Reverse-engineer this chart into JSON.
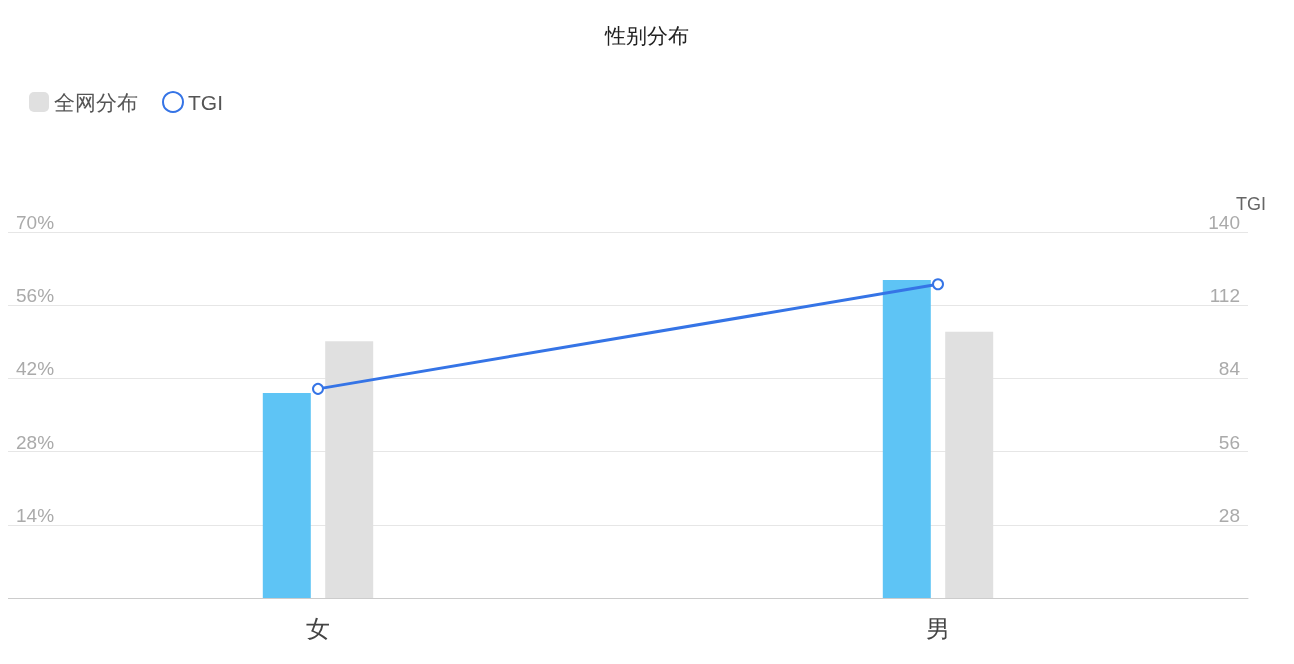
{
  "chart_data": {
    "type": "bar",
    "title": "性别分布",
    "y2label": "TGI",
    "categories": [
      "女",
      "男"
    ],
    "series": [
      {
        "color": "#5ec4f5",
        "values": [
          39.2,
          60.8
        ]
      },
      {
        "name": "全网分布",
        "color": "#e0e0e0",
        "values": [
          49.1,
          50.9
        ]
      },
      {
        "name": "TGI",
        "type": "line",
        "axis": "y2",
        "color": "#3574e6",
        "values": [
          80,
          120
        ]
      }
    ],
    "ylim": [
      0,
      70
    ],
    "yticks": [
      {
        "value": 0,
        "label": null
      },
      {
        "value": 14,
        "label": "14%"
      },
      {
        "value": 28,
        "label": "28%"
      },
      {
        "value": 42,
        "label": "42%"
      },
      {
        "value": 56,
        "label": "56%"
      },
      {
        "value": 70,
        "label": "70%"
      }
    ],
    "y2lim": [
      0,
      140
    ],
    "y2ticks": [
      28,
      56,
      84,
      112,
      140
    ],
    "grid": "y",
    "legend": "top left",
    "marker": "circle"
  }
}
